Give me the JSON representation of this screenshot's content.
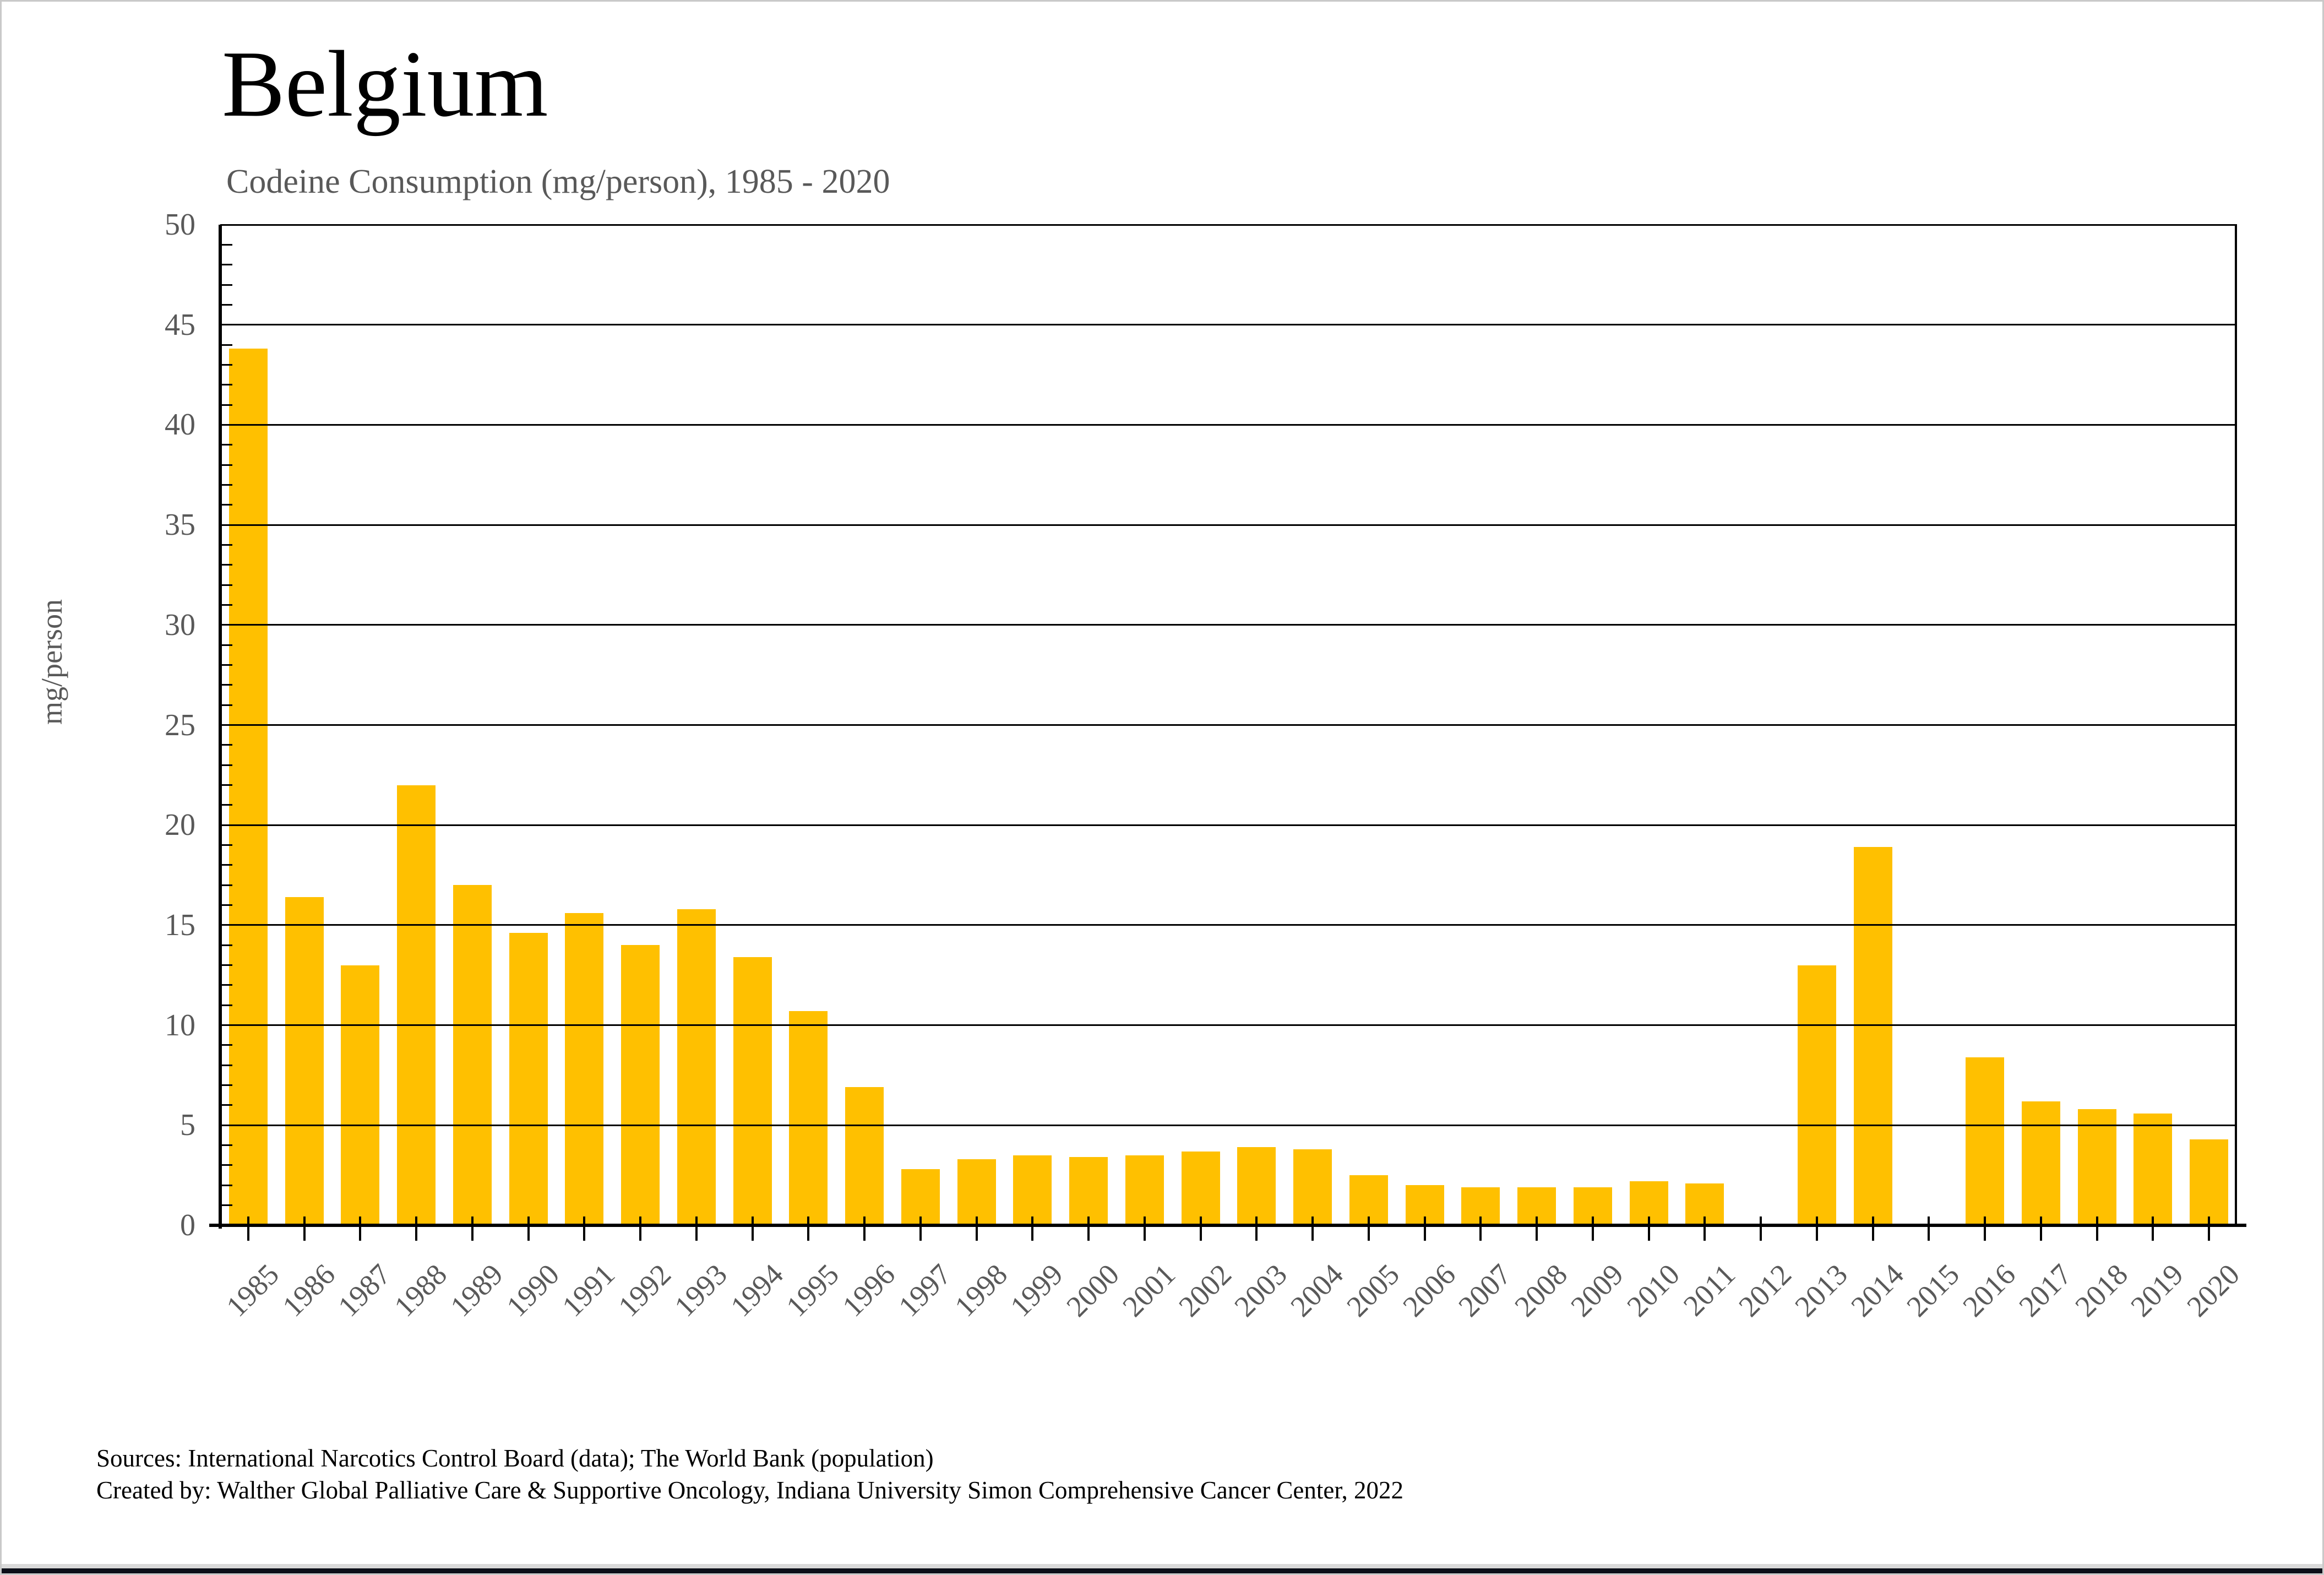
{
  "page": {
    "title": "Belgium",
    "subtitle": "Codeine Consumption (mg/person), 1985 - 2020",
    "source_line1": "Sources: International Narcotics Control Board (data); The World Bank (population)",
    "source_line2": "Created by: Walther Global Palliative Care & Supportive Oncology, Indiana University Simon Comprehensive Cancer Center, 2022"
  },
  "colors": {
    "bar": "#FFC000",
    "axis_text": "#595959",
    "title_text": "#000000",
    "gridline": "#000000"
  },
  "chart_data": {
    "type": "bar",
    "title": "Belgium",
    "subtitle": "Codeine Consumption (mg/person), 1985 - 2020",
    "xlabel": "",
    "ylabel": "mg/person",
    "ylim": [
      0,
      50
    ],
    "ytick_step": 5,
    "minor_tick_step": 1,
    "grid": true,
    "legend": "none",
    "categories": [
      "1985",
      "1986",
      "1987",
      "1988",
      "1989",
      "1990",
      "1991",
      "1992",
      "1993",
      "1994",
      "1995",
      "1996",
      "1997",
      "1998",
      "1999",
      "2000",
      "2001",
      "2002",
      "2003",
      "2004",
      "2005",
      "2006",
      "2007",
      "2008",
      "2009",
      "2010",
      "2011",
      "2012",
      "2013",
      "2014",
      "2015",
      "2016",
      "2017",
      "2018",
      "2019",
      "2020"
    ],
    "values": [
      43.8,
      16.4,
      13.0,
      22.0,
      17.0,
      14.6,
      15.6,
      14.0,
      15.8,
      13.4,
      10.7,
      6.9,
      2.8,
      3.3,
      3.5,
      3.4,
      3.5,
      3.7,
      3.9,
      3.8,
      2.5,
      2.0,
      1.9,
      1.9,
      1.9,
      2.2,
      2.1,
      0,
      13.0,
      18.9,
      0,
      8.4,
      6.2,
      5.8,
      5.6,
      4.3
    ]
  }
}
